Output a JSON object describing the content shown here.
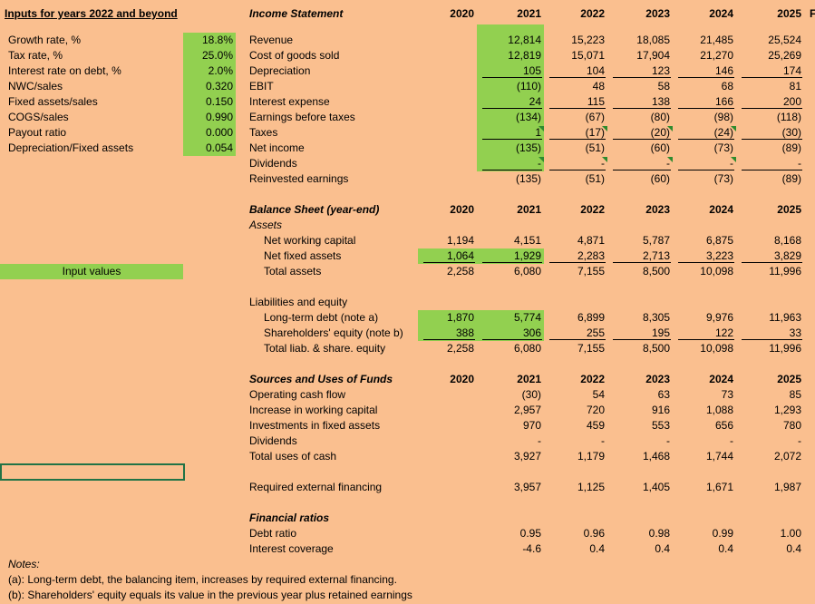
{
  "inputs": {
    "title": "Inputs for years 2022 and beyond",
    "rows": [
      [
        "Growth rate, %",
        "18.8%"
      ],
      [
        "Tax rate, %",
        "25.0%"
      ],
      [
        "Interest rate on debt, %",
        "2.0%"
      ],
      [
        "NWC/sales",
        "0.320"
      ],
      [
        "Fixed assets/sales",
        "0.150"
      ],
      [
        "COGS/sales",
        "0.990"
      ],
      [
        "Payout ratio",
        "0.000"
      ],
      [
        "Depreciation/Fixed assets",
        "0.054"
      ]
    ],
    "legend": "Input values"
  },
  "income_statement": {
    "title": "Income Statement",
    "years": [
      "2020",
      "2021",
      "2022",
      "2023",
      "2024",
      "2025"
    ],
    "cutoff_header": "F",
    "rows": [
      {
        "label": "Revenue",
        "values": [
          null,
          "12,814",
          "15,223",
          "18,085",
          "21,485",
          "25,524"
        ]
      },
      {
        "label": "Cost of goods sold",
        "values": [
          null,
          "12,819",
          "15,071",
          "17,904",
          "21,270",
          "25,269"
        ]
      },
      {
        "label": "Depreciation",
        "values": [
          null,
          "105",
          "104",
          "123",
          "146",
          "174"
        ]
      },
      {
        "label": "EBIT",
        "values": [
          null,
          "(110)",
          "48",
          "58",
          "68",
          "81"
        ]
      },
      {
        "label": "Interest expense",
        "values": [
          null,
          "24",
          "115",
          "138",
          "166",
          "200"
        ]
      },
      {
        "label": "Earnings before taxes",
        "values": [
          null,
          "(134)",
          "(67)",
          "(80)",
          "(98)",
          "(118)"
        ]
      },
      {
        "label": "Taxes",
        "values": [
          null,
          "1",
          "(17)",
          "(20)",
          "(24)",
          "(30)"
        ]
      },
      {
        "label": "Net income",
        "values": [
          null,
          "(135)",
          "(51)",
          "(60)",
          "(73)",
          "(89)"
        ]
      },
      {
        "label": "Dividends",
        "values": [
          null,
          "-",
          "-",
          "-",
          "-",
          "-"
        ]
      },
      {
        "label": "Reinvested earnings",
        "values": [
          null,
          "(135)",
          "(51)",
          "(60)",
          "(73)",
          "(89)"
        ]
      }
    ]
  },
  "balance_sheet": {
    "title": "Balance Sheet (year-end)",
    "years": [
      "2020",
      "2021",
      "2022",
      "2023",
      "2024",
      "2025"
    ],
    "assets_title": "Assets",
    "assets": [
      {
        "label": "Net working capital",
        "values": [
          "1,194",
          "4,151",
          "4,871",
          "5,787",
          "6,875",
          "8,168"
        ]
      },
      {
        "label": "Net fixed assets",
        "values": [
          "1,064",
          "1,929",
          "2,283",
          "2,713",
          "3,223",
          "3,829"
        ]
      },
      {
        "label": "Total assets",
        "values": [
          "2,258",
          "6,080",
          "7,155",
          "8,500",
          "10,098",
          "11,996"
        ]
      }
    ],
    "liabilities_title": "Liabilities and equity",
    "liabilities": [
      {
        "label": "Long-term debt (note a)",
        "values": [
          "1,870",
          "5,774",
          "6,899",
          "8,305",
          "9,976",
          "11,963"
        ]
      },
      {
        "label": "Shareholders' equity (note b)",
        "values": [
          "388",
          "306",
          "255",
          "195",
          "122",
          "33"
        ]
      },
      {
        "label": "Total liab. & share. equity",
        "values": [
          "2,258",
          "6,080",
          "7,155",
          "8,500",
          "10,098",
          "11,996"
        ]
      }
    ]
  },
  "sources_uses": {
    "title": "Sources and Uses of Funds",
    "years": [
      "2020",
      "2021",
      "2022",
      "2023",
      "2024",
      "2025"
    ],
    "rows": [
      {
        "label": "Operating cash flow",
        "values": [
          null,
          "(30)",
          "54",
          "63",
          "73",
          "85"
        ]
      },
      {
        "label": "Increase in working capital",
        "values": [
          null,
          "2,957",
          "720",
          "916",
          "1,088",
          "1,293"
        ]
      },
      {
        "label": "Investments in fixed assets",
        "values": [
          null,
          "970",
          "459",
          "553",
          "656",
          "780"
        ]
      },
      {
        "label": "Dividends",
        "values": [
          null,
          "-",
          "-",
          "-",
          "-",
          "-"
        ]
      },
      {
        "label": "Total uses of cash",
        "values": [
          null,
          "3,927",
          "1,179",
          "1,468",
          "1,744",
          "2,072"
        ]
      }
    ]
  },
  "financing": {
    "label": "Required external financing",
    "values": [
      null,
      "3,957",
      "1,125",
      "1,405",
      "1,671",
      "1,987"
    ]
  },
  "ratios": {
    "title": "Financial ratios",
    "rows": [
      {
        "label": "Debt ratio",
        "values": [
          null,
          "0.95",
          "0.96",
          "0.98",
          "0.99",
          "1.00"
        ]
      },
      {
        "label": "Interest coverage",
        "values": [
          null,
          "-4.6",
          "0.4",
          "0.4",
          "0.4",
          "0.4"
        ]
      }
    ]
  },
  "notes": {
    "title": "Notes:",
    "lines": [
      "(a): Long-term debt, the balancing item, increases by required external financing.",
      "(b): Shareholders' equity equals its value in the previous year plus retained earnings"
    ]
  }
}
